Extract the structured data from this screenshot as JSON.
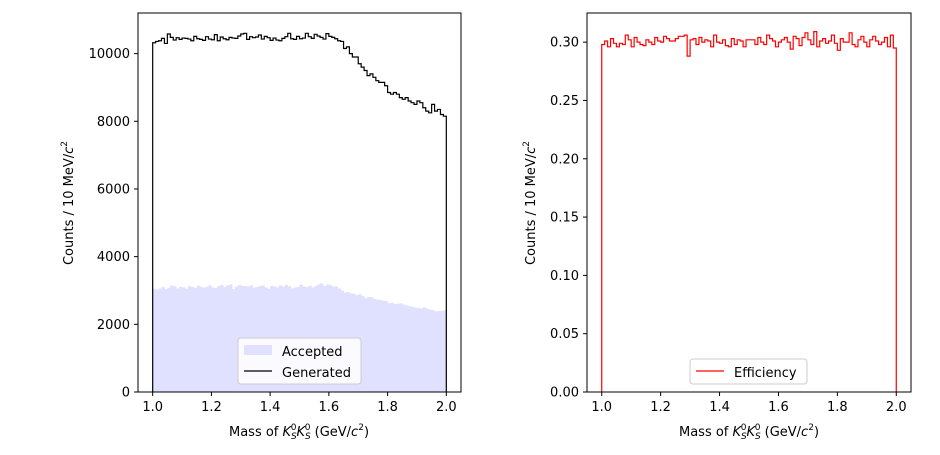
{
  "chart_data": [
    {
      "type": "histogram",
      "xlabel_prefix": "Mass of ",
      "xlabel_math": "K_S^0 K_S^0",
      "xlabel_suffix_pre": " (GeV/",
      "xlabel_unit_base": "c",
      "xlabel_unit_exp": "2",
      "xlabel_suffix_post": ")",
      "ylabel_main": "Counts / 10 MeV/",
      "ylabel_unit_base": "c",
      "ylabel_unit_exp": "2",
      "xlim": [
        0.95,
        2.05
      ],
      "ylim": [
        0,
        11200
      ],
      "xticks": [
        1.0,
        1.2,
        1.4,
        1.6,
        1.8,
        2.0
      ],
      "xtick_labels": [
        "1.0",
        "1.2",
        "1.4",
        "1.6",
        "1.8",
        "2.0"
      ],
      "yticks": [
        0,
        2000,
        4000,
        6000,
        8000,
        10000
      ],
      "ytick_labels": [
        "0",
        "2000",
        "4000",
        "6000",
        "8000",
        "10000"
      ],
      "bin_range": [
        1.0,
        2.0
      ],
      "legend_position": "lower-center",
      "series": [
        {
          "name": "Accepted",
          "style": "filled",
          "color": "#e0e0ff",
          "values": [
            3050,
            3020,
            3060,
            3100,
            3040,
            3080,
            3150,
            3120,
            3060,
            3110,
            3090,
            3050,
            3130,
            3100,
            3070,
            3140,
            3110,
            3080,
            3120,
            3150,
            3090,
            3070,
            3130,
            3160,
            3100,
            3150,
            3180,
            3040,
            3110,
            3160,
            3140,
            3130,
            3120,
            3150,
            3080,
            3100,
            3130,
            3150,
            3090,
            3050,
            3130,
            3120,
            3090,
            3150,
            3110,
            3170,
            3120,
            3060,
            3090,
            3100,
            3170,
            3120,
            3100,
            3140,
            3090,
            3130,
            3180,
            3210,
            3130,
            3180,
            3160,
            3110,
            3120,
            3060,
            3000,
            2940,
            2950,
            2920,
            2900,
            2860,
            2890,
            2840,
            2770,
            2810,
            2800,
            2750,
            2730,
            2720,
            2700,
            2690,
            2620,
            2640,
            2600,
            2610,
            2620,
            2580,
            2560,
            2530,
            2520,
            2490,
            2480,
            2470,
            2500,
            2460,
            2430,
            2420,
            2380,
            2390,
            2400,
            2420
          ]
        },
        {
          "name": "Generated",
          "style": "step",
          "color": "#000000",
          "values": [
            10320,
            10360,
            10380,
            10450,
            10300,
            10580,
            10480,
            10400,
            10470,
            10420,
            10460,
            10450,
            10430,
            10380,
            10510,
            10440,
            10420,
            10390,
            10500,
            10430,
            10410,
            10560,
            10380,
            10490,
            10440,
            10410,
            10480,
            10460,
            10450,
            10520,
            10580,
            10600,
            10420,
            10500,
            10470,
            10490,
            10550,
            10430,
            10510,
            10470,
            10390,
            10460,
            10400,
            10380,
            10450,
            10500,
            10600,
            10440,
            10420,
            10510,
            10440,
            10460,
            10600,
            10500,
            10450,
            10570,
            10520,
            10480,
            10430,
            10590,
            10510,
            10480,
            10440,
            10380,
            10360,
            10150,
            10200,
            10000,
            9900,
            9900,
            9700,
            9600,
            9500,
            9350,
            9400,
            9300,
            9200,
            9150,
            9150,
            9050,
            8850,
            8800,
            8850,
            8800,
            8700,
            8650,
            8700,
            8600,
            8550,
            8500,
            8600,
            8550,
            8400,
            8300,
            8250,
            8500,
            8300,
            8350,
            8200,
            8150
          ]
        }
      ]
    },
    {
      "type": "histogram",
      "xlabel_prefix": "Mass of ",
      "xlabel_math": "K_S^0 K_S^0",
      "xlabel_suffix_pre": " (GeV/",
      "xlabel_unit_base": "c",
      "xlabel_unit_exp": "2",
      "xlabel_suffix_post": ")",
      "ylabel_main": "Counts / 10 MeV/",
      "ylabel_unit_base": "c",
      "ylabel_unit_exp": "2",
      "xlim": [
        0.95,
        2.05
      ],
      "ylim": [
        0,
        0.325
      ],
      "xticks": [
        1.0,
        1.2,
        1.4,
        1.6,
        1.8,
        2.0
      ],
      "xtick_labels": [
        "1.0",
        "1.2",
        "1.4",
        "1.6",
        "1.8",
        "2.0"
      ],
      "yticks": [
        0.0,
        0.05,
        0.1,
        0.15,
        0.2,
        0.25,
        0.3
      ],
      "ytick_labels": [
        "0.00",
        "0.05",
        "0.10",
        "0.15",
        "0.20",
        "0.25",
        "0.30"
      ],
      "bin_range": [
        1.0,
        2.0
      ],
      "legend_position": "lower-center",
      "series": [
        {
          "name": "Efficiency",
          "style": "step",
          "color": "#ff0000",
          "values": [
            0.298,
            0.301,
            0.296,
            0.303,
            0.299,
            0.296,
            0.299,
            0.298,
            0.306,
            0.302,
            0.296,
            0.304,
            0.3,
            0.298,
            0.297,
            0.302,
            0.3,
            0.298,
            0.304,
            0.301,
            0.3,
            0.305,
            0.303,
            0.301,
            0.301,
            0.303,
            0.305,
            0.305,
            0.306,
            0.288,
            0.302,
            0.303,
            0.298,
            0.304,
            0.3,
            0.302,
            0.301,
            0.296,
            0.306,
            0.3,
            0.299,
            0.302,
            0.297,
            0.296,
            0.303,
            0.298,
            0.302,
            0.301,
            0.296,
            0.302,
            0.302,
            0.302,
            0.298,
            0.304,
            0.3,
            0.298,
            0.306,
            0.303,
            0.301,
            0.296,
            0.3,
            0.302,
            0.304,
            0.3,
            0.294,
            0.305,
            0.303,
            0.297,
            0.304,
            0.308,
            0.302,
            0.298,
            0.309,
            0.296,
            0.301,
            0.303,
            0.299,
            0.301,
            0.306,
            0.299,
            0.293,
            0.303,
            0.3,
            0.3,
            0.308,
            0.298,
            0.296,
            0.302,
            0.305,
            0.3,
            0.296,
            0.302,
            0.305,
            0.301,
            0.298,
            0.3,
            0.304,
            0.296,
            0.306,
            0.295
          ]
        }
      ]
    }
  ]
}
